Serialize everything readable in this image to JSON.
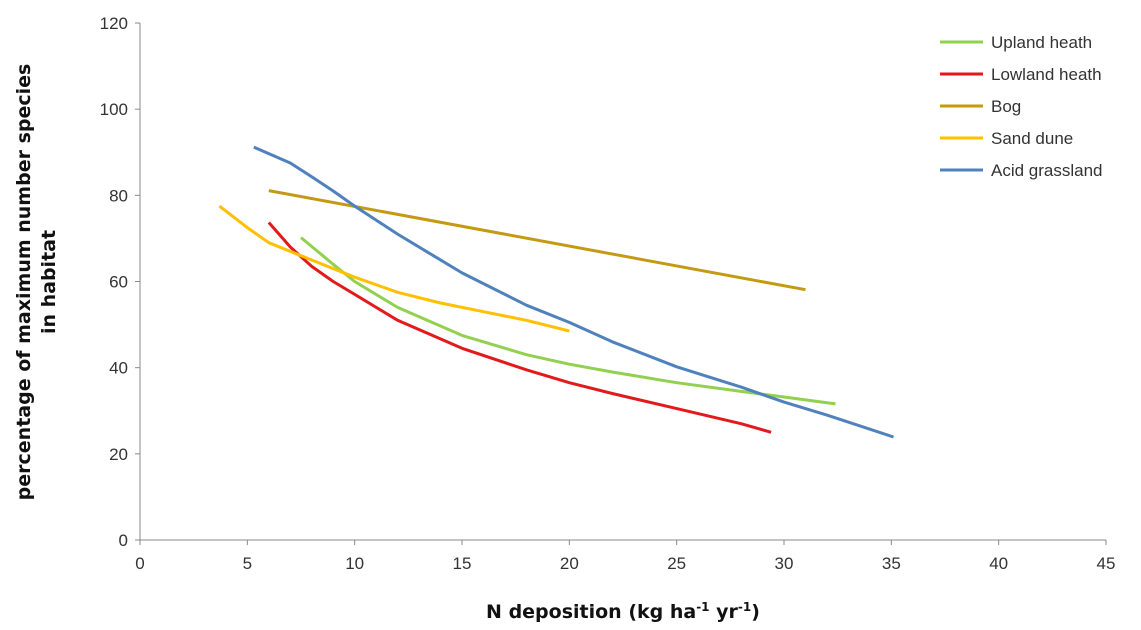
{
  "chart_data": {
    "type": "line",
    "title": "",
    "xlabel": {
      "main": "N deposition (kg ha",
      "sup1": "-1",
      "mid": " yr",
      "sup2": "-1",
      "end": ")"
    },
    "ylabel": {
      "line1": "percentage of maximum number species",
      "line2": "in habitat"
    },
    "xlim": [
      0,
      45
    ],
    "ylim": [
      0,
      120
    ],
    "xticks": [
      "0",
      "5",
      "10",
      "15",
      "20",
      "25",
      "30",
      "35",
      "40",
      "45"
    ],
    "yticks": [
      "0",
      "20",
      "40",
      "60",
      "80",
      "100",
      "120"
    ],
    "grid": false,
    "legend_position": "top-right",
    "series": [
      {
        "name": "Upland heath",
        "color": "#92d050",
        "points": [
          [
            7.5,
            70.2
          ],
          [
            9,
            64
          ],
          [
            10,
            60
          ],
          [
            12,
            54
          ],
          [
            15,
            47.5
          ],
          [
            18,
            43
          ],
          [
            20,
            40.8
          ],
          [
            22,
            39
          ],
          [
            25,
            36.5
          ],
          [
            28,
            34.5
          ],
          [
            30,
            33.2
          ],
          [
            32.4,
            31.6
          ]
        ]
      },
      {
        "name": "Lowland heath",
        "color": "#e31a1c",
        "points": [
          [
            6,
            73.7
          ],
          [
            7,
            68
          ],
          [
            8,
            63.5
          ],
          [
            9,
            60
          ],
          [
            10,
            57
          ],
          [
            12,
            51
          ],
          [
            15,
            44.5
          ],
          [
            18,
            39.5
          ],
          [
            20,
            36.5
          ],
          [
            22,
            34
          ],
          [
            25,
            30.5
          ],
          [
            28,
            27
          ],
          [
            29.4,
            25
          ]
        ]
      },
      {
        "name": "Bog",
        "color": "#c49a14",
        "points": [
          [
            6,
            81.1
          ],
          [
            31,
            58.1
          ]
        ]
      },
      {
        "name": "Sand dune",
        "color": "#ffc000",
        "points": [
          [
            3.7,
            77.5
          ],
          [
            5,
            72.5
          ],
          [
            6,
            69
          ],
          [
            8,
            65
          ],
          [
            10,
            61
          ],
          [
            12,
            57.5
          ],
          [
            14,
            55
          ],
          [
            16,
            53
          ],
          [
            18,
            51
          ],
          [
            20,
            48.5
          ]
        ]
      },
      {
        "name": "Acid grassland",
        "color": "#4f81bd",
        "points": [
          [
            5.3,
            91.2
          ],
          [
            7,
            87.5
          ],
          [
            8,
            84.3
          ],
          [
            9,
            81
          ],
          [
            10,
            77.5
          ],
          [
            12,
            71
          ],
          [
            15,
            62
          ],
          [
            18,
            54.5
          ],
          [
            20,
            50.5
          ],
          [
            22,
            46
          ],
          [
            25,
            40.2
          ],
          [
            28,
            35.5
          ],
          [
            30,
            32
          ],
          [
            32,
            29
          ],
          [
            35.1,
            23.9
          ]
        ]
      }
    ]
  }
}
